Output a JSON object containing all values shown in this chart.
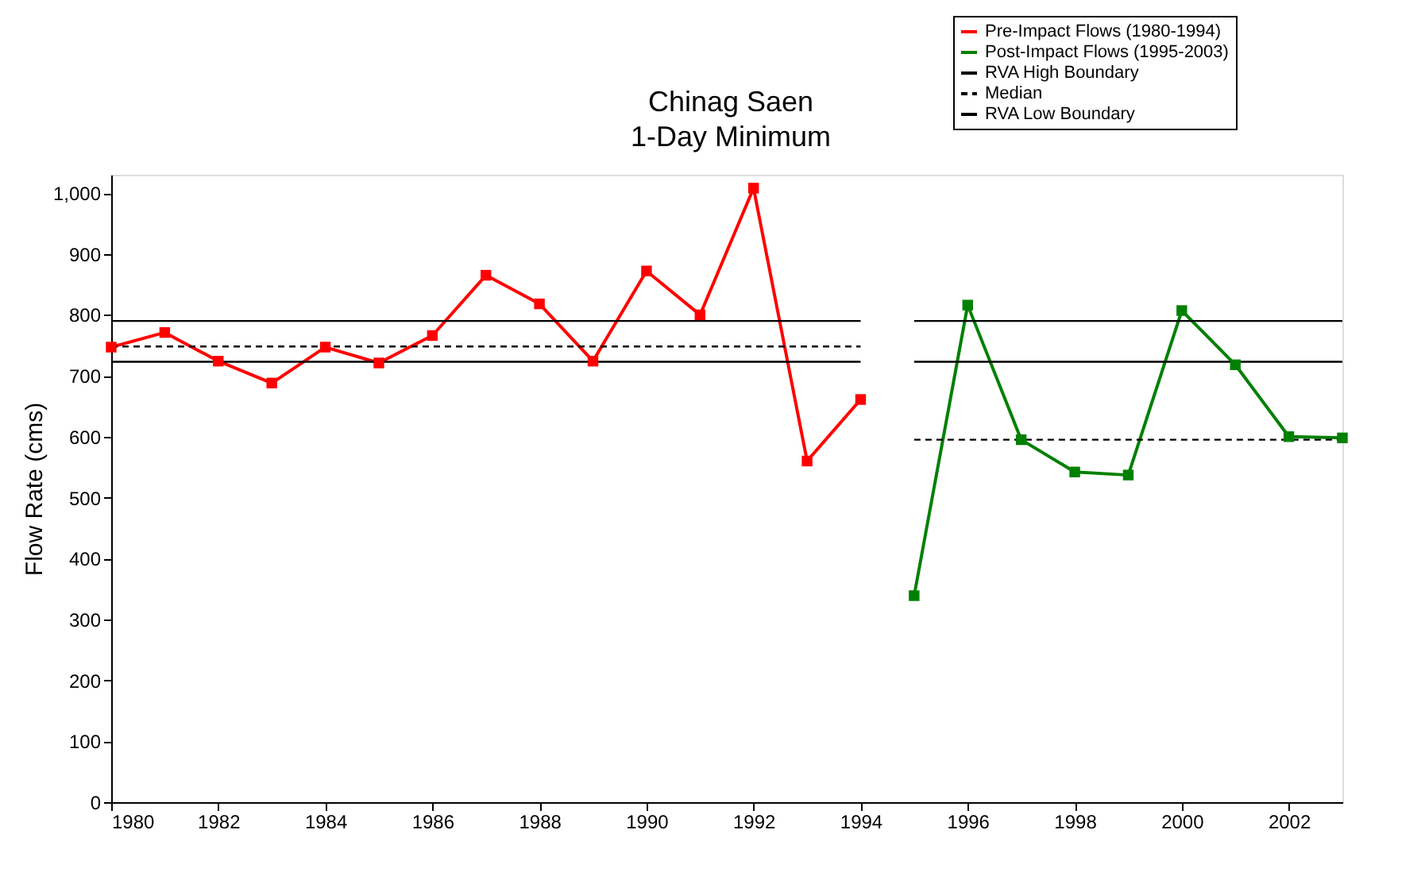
{
  "chart_data": {
    "type": "line",
    "title": "Chinag Saen\n1-Day Minimum",
    "ylabel": "Flow Rate (cms)",
    "xlim": [
      1980,
      2003
    ],
    "xticks": [
      1980,
      1982,
      1984,
      1986,
      1988,
      1990,
      1992,
      1994,
      1996,
      1998,
      2000,
      2002
    ],
    "ylim": [
      0,
      1030
    ],
    "yticks": [
      0,
      100,
      200,
      300,
      400,
      500,
      600,
      700,
      800,
      900,
      {
        "value": 1000,
        "label": "1,000"
      }
    ],
    "grid": false,
    "legend": "top right",
    "marker": "square",
    "line_style": "solid",
    "series": [
      {
        "name": "Pre-Impact Flows (1980-1994)",
        "color": "#ff0000",
        "x": [
          1980,
          1981,
          1982,
          1983,
          1984,
          1985,
          1986,
          1987,
          1988,
          1989,
          1990,
          1991,
          1992,
          1993,
          1994
        ],
        "values": [
          747,
          771,
          724,
          688,
          747,
          721,
          766,
          865,
          818,
          724,
          872,
          800,
          1008,
          560,
          661
        ]
      },
      {
        "name": "Post-Impact Flows (1995-2003)",
        "color": "#008000",
        "x": [
          1995,
          1996,
          1997,
          1998,
          1999,
          2000,
          2001,
          2002,
          2003
        ],
        "values": [
          339,
          816,
          595,
          542,
          537,
          807,
          718,
          600,
          598
        ]
      },
      {
        "name": "RVA High Boundary",
        "color": "#000000",
        "marker": "none",
        "x": [
          1980,
          1994
        ],
        "values": [
          790,
          790
        ]
      },
      {
        "name": "Median",
        "color": "#000000",
        "marker": "none",
        "line_style": "dashed",
        "x": [
          1980,
          1994
        ],
        "values": [
          748,
          748
        ]
      },
      {
        "name": "RVA Low Boundary",
        "color": "#000000",
        "marker": "none",
        "x": [
          1980,
          1994
        ],
        "values": [
          723,
          723
        ]
      },
      {
        "color": "#000000",
        "marker": "none",
        "x": [
          1995,
          2003
        ],
        "values": [
          790,
          790
        ]
      },
      {
        "color": "#000000",
        "marker": "none",
        "line_style": "dashed",
        "x": [
          1995,
          2003
        ],
        "values": [
          595,
          595
        ]
      },
      {
        "color": "#000000",
        "marker": "none",
        "x": [
          1995,
          2003
        ],
        "values": [
          723,
          723
        ]
      }
    ]
  }
}
